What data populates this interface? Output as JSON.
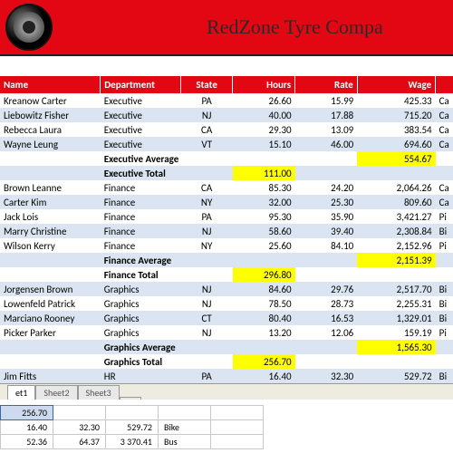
{
  "header": {
    "company_name": "RedZone Tyre Compa"
  },
  "columns": [
    "Name",
    "Department",
    "State",
    "Hours",
    "Rate",
    "Wage"
  ],
  "groups": [
    {
      "name": "Executive",
      "rows": [
        {
          "name": "Kreanow Carter",
          "dept": "Executive",
          "state": "PA",
          "hours": "26.60",
          "rate": "15.99",
          "wage": "425.33",
          "x": "Ca"
        },
        {
          "name": "Liebowitz Fisher",
          "dept": "Executive",
          "state": "NJ",
          "hours": "40.00",
          "rate": "17.88",
          "wage": "715.20",
          "x": "Ca"
        },
        {
          "name": "Rebecca Laura",
          "dept": "Executive",
          "state": "CA",
          "hours": "29.30",
          "rate": "13.09",
          "wage": "383.54",
          "x": "Ca"
        },
        {
          "name": "Wayne Leung",
          "dept": "Executive",
          "state": "VT",
          "hours": "15.10",
          "rate": "46.00",
          "wage": "694.60",
          "x": "Ca"
        }
      ],
      "avg_label": "Executive Average",
      "avg_wage": "554.67",
      "total_label": "Executive Total",
      "total_hours": "111.00"
    },
    {
      "name": "Finance",
      "rows": [
        {
          "name": "Brown Leanne",
          "dept": "Finance",
          "state": "CA",
          "hours": "85.30",
          "rate": "24.20",
          "wage": "2,064.26",
          "x": "Ca"
        },
        {
          "name": "Carter Kim",
          "dept": "Finance",
          "state": "NY",
          "hours": "32.00",
          "rate": "25.30",
          "wage": "809.60",
          "x": "Ca"
        },
        {
          "name": "Jack Lois",
          "dept": "Finance",
          "state": "PA",
          "hours": "95.30",
          "rate": "35.90",
          "wage": "3,421.27",
          "x": "Pi"
        },
        {
          "name": "Marry Christine",
          "dept": "Finance",
          "state": "NJ",
          "hours": "58.60",
          "rate": "39.40",
          "wage": "2,308.84",
          "x": "Bi"
        },
        {
          "name": "Wilson Kerry",
          "dept": "Finance",
          "state": "NY",
          "hours": "25.60",
          "rate": "84.10",
          "wage": "2,152.96",
          "x": "Pi"
        }
      ],
      "avg_label": "Finance Average",
      "avg_wage": "2,151.39",
      "total_label": "Finance Total",
      "total_hours": "296.80"
    },
    {
      "name": "Graphics",
      "rows": [
        {
          "name": "Jorgensen Brown",
          "dept": "Graphics",
          "state": "NJ",
          "hours": "84.60",
          "rate": "29.76",
          "wage": "2,517.70",
          "x": "Bi"
        },
        {
          "name": "Lowenfeld Patrick",
          "dept": "Graphics",
          "state": "NJ",
          "hours": "78.50",
          "rate": "28.73",
          "wage": "2,255.31",
          "x": "Bi"
        },
        {
          "name": "Marciano Rooney",
          "dept": "Graphics",
          "state": "CT",
          "hours": "80.40",
          "rate": "16.53",
          "wage": "1,329.01",
          "x": "Bi"
        },
        {
          "name": "Picker Parker",
          "dept": "Graphics",
          "state": "NJ",
          "hours": "13.20",
          "rate": "12.06",
          "wage": "159.19",
          "x": "Pi"
        }
      ],
      "avg_label": "Graphics Average",
      "avg_wage": "1,565.30",
      "total_label": "Graphics Total",
      "total_hours": "256.70"
    },
    {
      "name": "HR",
      "rows": [
        {
          "name": "Jim Fitts",
          "dept": "HR",
          "state": "PA",
          "hours": "16.40",
          "rate": "32.30",
          "wage": "529.72",
          "x": "Bi"
        }
      ]
    }
  ],
  "tabs": {
    "items": [
      {
        "label": "et1"
      },
      {
        "label": "Sheet2"
      },
      {
        "label": "Sheet3"
      }
    ]
  },
  "formula_preview": {
    "rows": [
      [
        "256.70",
        "",
        "",
        "",
        ""
      ],
      [
        "16.40",
        "32.30",
        "529.72",
        "Bike",
        ""
      ],
      [
        "52.36",
        "64.37",
        "3 370.41",
        "Bus",
        ""
      ]
    ]
  },
  "colors": {
    "brand_red": "#e30613",
    "row_band": "#dbe5f1",
    "highlight": "#ffff00"
  }
}
